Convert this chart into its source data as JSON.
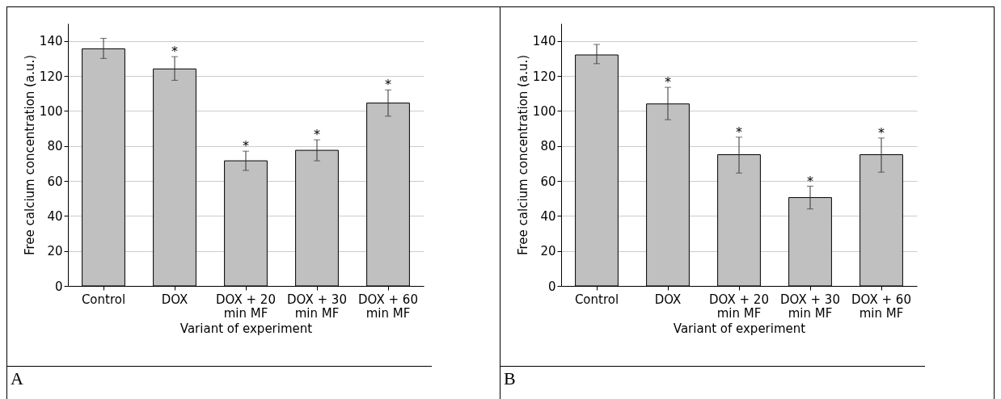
{
  "chart_data": [
    {
      "type": "bar",
      "xlabel": "Variant of experiment",
      "ylabel": "Free calcium concentration (a.u.)",
      "categories": [
        "Control",
        "DOX",
        "DOX + 20\nmin MF",
        "DOX + 30\nmin MF",
        "DOX + 60\nmin MF"
      ],
      "values": [
        135.5,
        124,
        71.5,
        77.5,
        104.5
      ],
      "color": "#c0c0c0",
      "errors": [
        [
          130,
          141.5
        ],
        [
          117.5,
          131
        ],
        [
          66,
          77
        ],
        [
          71.5,
          83.5
        ],
        [
          97,
          112
        ]
      ],
      "ylim": [
        0,
        150
      ],
      "yticks": [
        0,
        20,
        40,
        60,
        80,
        100,
        120,
        140
      ],
      "grid": "y",
      "value_labels": [
        null,
        "*",
        "*",
        "*",
        "*"
      ],
      "annotations": [
        "A"
      ]
    },
    {
      "type": "bar",
      "xlabel": "Variant of experiment",
      "ylabel": "Free calcium concentration (a.u.)",
      "categories": [
        "Control",
        "DOX",
        "DOX + 20\nmin MF",
        "DOX + 30\nmin MF",
        "DOX + 60\nmin MF"
      ],
      "values": [
        132,
        104,
        75,
        50.5,
        75
      ],
      "color": "#c0c0c0",
      "errors": [
        [
          127,
          138
        ],
        [
          95,
          113.5
        ],
        [
          64.5,
          85
        ],
        [
          44,
          57
        ],
        [
          65,
          84.5
        ]
      ],
      "ylim": [
        0,
        150
      ],
      "yticks": [
        0,
        20,
        40,
        60,
        80,
        100,
        120,
        140
      ],
      "grid": "y",
      "value_labels": [
        null,
        "*",
        "*",
        "*",
        "*"
      ],
      "annotations": [
        "B"
      ]
    }
  ]
}
